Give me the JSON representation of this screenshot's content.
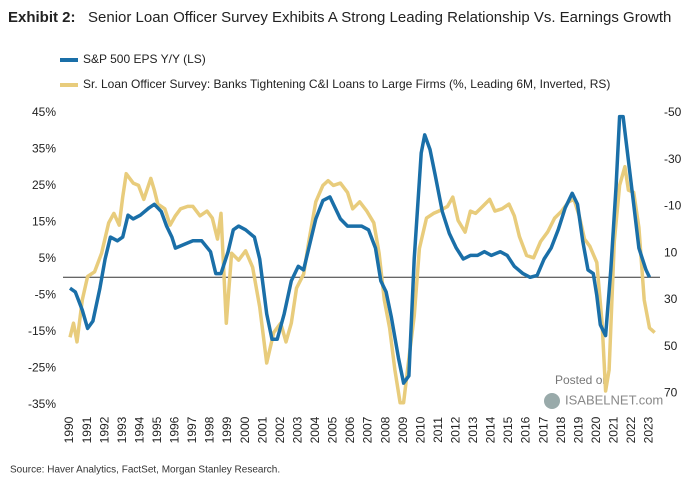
{
  "chart_data": {
    "type": "line",
    "title_prefix": "Exhibit 2:",
    "title": "Senior Loan Officer Survey Exhibits A Strong Leading Relationship Vs. Earnings Growth",
    "source": "Source: Haver Analytics, FactSet, Morgan Stanley Research.",
    "watermark_line1": "Posted on",
    "watermark_line2": "ISABELNET.com",
    "xlim": [
      1989.6,
      2023.6
    ],
    "xticks": [
      1990,
      1991,
      1992,
      1993,
      1994,
      1995,
      1996,
      1997,
      1998,
      1999,
      2000,
      2001,
      2002,
      2003,
      2004,
      2005,
      2006,
      2007,
      2008,
      2009,
      2010,
      2011,
      2012,
      2013,
      2014,
      2015,
      2016,
      2017,
      2018,
      2019,
      2020,
      2021,
      2022,
      2023
    ],
    "ylim": [
      -35,
      45
    ],
    "yticks": [
      {
        "value": 45,
        "label": "45%"
      },
      {
        "value": 35,
        "label": "35%"
      },
      {
        "value": 25,
        "label": "25%"
      },
      {
        "value": 15,
        "label": "15%"
      },
      {
        "value": 5,
        "label": "5%"
      },
      {
        "value": -5,
        "label": "-5%"
      },
      {
        "value": -15,
        "label": "-15%"
      },
      {
        "value": -25,
        "label": "-25%"
      },
      {
        "value": -35,
        "label": "-35%"
      }
    ],
    "y2lim": [
      -50,
      75
    ],
    "y2_inverted": true,
    "y2ticks": [
      -50,
      -30,
      -10,
      10,
      30,
      50,
      70
    ],
    "series": [
      {
        "name": "S&P 500 EPS Y/Y (LS)",
        "color": "#1a6fa8",
        "x": [
          1990.0,
          1990.3,
          1990.7,
          1991.0,
          1991.3,
          1991.7,
          1992.0,
          1992.3,
          1992.7,
          1993.0,
          1993.3,
          1993.6,
          1994.0,
          1994.5,
          1994.8,
          1995.2,
          1995.5,
          1995.8,
          1996.0,
          1996.5,
          1997.0,
          1997.5,
          1998.0,
          1998.3,
          1998.6,
          1999.0,
          1999.3,
          1999.6,
          2000.0,
          2000.5,
          2000.8,
          2001.2,
          2001.5,
          2001.8,
          2002.2,
          2002.6,
          2003.0,
          2003.3,
          2003.6,
          2004.0,
          2004.4,
          2004.8,
          2005.0,
          2005.4,
          2005.8,
          2006.2,
          2006.6,
          2007.0,
          2007.4,
          2007.7,
          2008.0,
          2008.3,
          2008.7,
          2009.0,
          2009.3,
          2009.6,
          2010.0,
          2010.2,
          2010.5,
          2010.8,
          2011.2,
          2011.6,
          2012.0,
          2012.4,
          2012.8,
          2013.2,
          2013.6,
          2014.0,
          2014.5,
          2014.9,
          2015.3,
          2015.8,
          2016.2,
          2016.6,
          2017.0,
          2017.4,
          2017.8,
          2018.2,
          2018.6,
          2018.9,
          2019.2,
          2019.5,
          2019.8,
          2020.0,
          2020.2,
          2020.5,
          2020.8,
          2021.1,
          2021.3,
          2021.5,
          2021.8,
          2022.1,
          2022.4,
          2022.8,
          2023.0
        ],
        "values": [
          -3,
          -4,
          -9,
          -14,
          -12,
          -3,
          5,
          11,
          10,
          11,
          17,
          16,
          17,
          19,
          20,
          18,
          14,
          11,
          8,
          9,
          10,
          10,
          7,
          1,
          1,
          7,
          13,
          14,
          13,
          11,
          5,
          -10,
          -17,
          -17,
          -10,
          -1,
          3,
          2,
          8,
          16,
          21,
          22,
          20,
          16,
          14,
          14,
          14,
          13,
          8,
          -1,
          -4,
          -11,
          -22,
          -29,
          -27,
          5,
          34,
          39,
          35,
          28,
          18,
          12,
          8,
          5,
          6,
          6,
          7,
          6,
          7,
          6,
          3,
          1,
          0,
          0.5,
          5,
          8,
          13,
          19,
          23,
          20,
          10,
          2,
          1,
          -5,
          -13,
          -16,
          2,
          25,
          44,
          44,
          32,
          20,
          8,
          2,
          0
        ]
      },
      {
        "name": "Sr. Loan Officer Survey: Banks Tightening C&I Loans to Large Firms (%, Leading 6M, Inverted, RS)",
        "color": "#e8cc7c",
        "axis": "y2",
        "x": [
          1990.0,
          1990.2,
          1990.4,
          1990.7,
          1991.0,
          1991.4,
          1991.8,
          1992.2,
          1992.5,
          1992.8,
          1993.0,
          1993.2,
          1993.6,
          1993.9,
          1994.2,
          1994.6,
          1994.8,
          1995.0,
          1995.4,
          1995.7,
          1996.0,
          1996.3,
          1996.7,
          1997.0,
          1997.4,
          1997.8,
          1998.1,
          1998.4,
          1998.6,
          1998.9,
          1999.2,
          1999.6,
          2000.0,
          2000.4,
          2000.8,
          2001.2,
          2001.6,
          2002.0,
          2002.3,
          2002.6,
          2002.9,
          2003.3,
          2003.6,
          2004.0,
          2004.4,
          2004.7,
          2005.0,
          2005.4,
          2005.8,
          2006.1,
          2006.5,
          2006.9,
          2007.3,
          2007.6,
          2007.9,
          2008.2,
          2008.5,
          2008.8,
          2009.0,
          2009.3,
          2009.6,
          2009.9,
          2010.3,
          2010.7,
          2011.0,
          2011.5,
          2011.8,
          2012.1,
          2012.5,
          2012.8,
          2013.1,
          2013.5,
          2013.9,
          2014.2,
          2014.6,
          2015.0,
          2015.3,
          2015.6,
          2016.0,
          2016.4,
          2016.8,
          2017.2,
          2017.6,
          2018.0,
          2018.4,
          2018.7,
          2019.0,
          2019.3,
          2019.6,
          2020.0,
          2020.3,
          2020.5,
          2020.7,
          2021.0,
          2021.3,
          2021.6,
          2021.8,
          2022.1,
          2022.4,
          2022.7,
          2023.0,
          2023.3
        ],
        "values": [
          46,
          40,
          48,
          30,
          20,
          18,
          10,
          -3,
          -7,
          -2,
          -14,
          -24,
          -20,
          -19,
          -13,
          -22,
          -17,
          -11,
          -9,
          -2,
          -6,
          -9,
          -10,
          -10,
          -6,
          -8,
          -5,
          4,
          -7,
          40,
          10,
          13,
          9,
          16,
          33,
          57,
          44,
          40,
          48,
          40,
          25,
          19,
          5,
          -12,
          -19,
          -21,
          -19,
          -20,
          -16,
          -9,
          -12,
          -8,
          -3,
          10,
          30,
          42,
          60,
          74,
          74,
          55,
          37,
          8,
          -5,
          -7,
          -8,
          -10,
          -14,
          -4,
          1,
          -8,
          -7,
          -10,
          -13,
          -8,
          -9,
          -11,
          -6,
          3,
          11,
          12,
          5,
          1,
          -5,
          -8,
          -12,
          -13,
          -6,
          4,
          7,
          14,
          40,
          69,
          60,
          5,
          -19,
          -27,
          -17,
          -16,
          -1,
          30,
          42,
          44
        ]
      }
    ]
  }
}
